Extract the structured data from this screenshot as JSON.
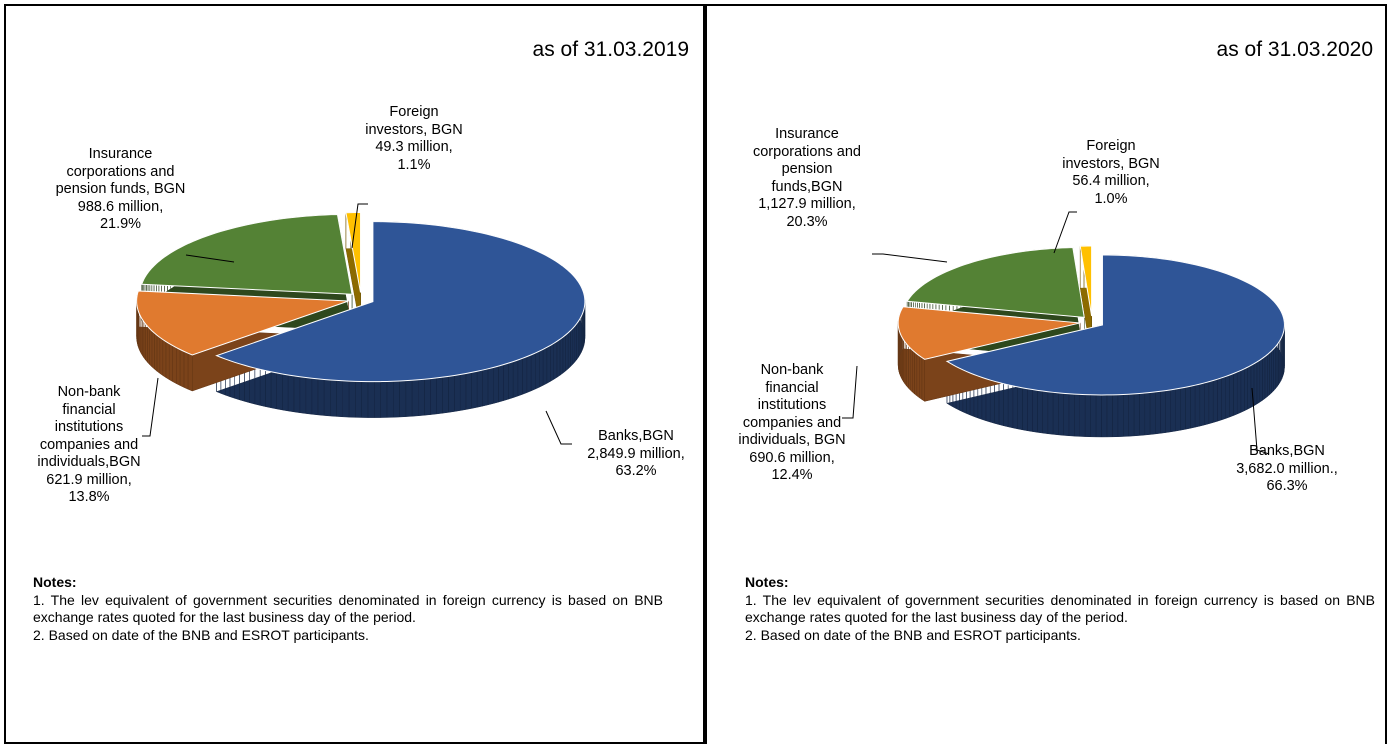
{
  "chart_data": [
    {
      "type": "pie",
      "title": "as of 31.03.2019",
      "categories": [
        "Banks,BGN",
        "Non-bank\nfinancial\ninstitutions\ncompanies  and\nindividuals,BGN",
        "Insurance\ncorporations and\npension funds, BGN",
        "Foreign\ninvestors, BGN"
      ],
      "amount_labels": [
        "2,849.9 million,",
        "621.9 million,",
        "988.6 million,",
        "49.3 million,"
      ],
      "values": [
        63.2,
        13.8,
        21.9,
        1.1
      ],
      "value_labels": [
        "63.2%",
        "13.8%",
        "21.9%",
        "1.1%"
      ],
      "colors": [
        "#2f5597",
        "#e07a2f",
        "#548235",
        "#ffc000"
      ]
    },
    {
      "type": "pie",
      "title": "as of 31.03.2020",
      "categories": [
        "Banks,BGN",
        "Non-bank\nfinancial\ninstitutions\ncompanies  and\nindividuals, BGN",
        "Insurance\ncorporations and\npension\nfunds,BGN",
        "Foreign\ninvestors, BGN"
      ],
      "amount_labels": [
        "3,682.0 million.,",
        "690.6 million,",
        "1,127.9 million,",
        "56.4 million,"
      ],
      "values": [
        66.3,
        12.4,
        20.3,
        1.0
      ],
      "value_labels": [
        "66.3%",
        "12.4%",
        "20.3%",
        "1.0%"
      ],
      "colors": [
        "#2f5597",
        "#e07a2f",
        "#548235",
        "#ffc000"
      ]
    }
  ],
  "notes": [
    {
      "heading": "Notes:",
      "items": [
        "1. The lev equivalent of government securities denominated in foreign currency is based on BNB exchange rates quoted for the last business day of the period.",
        "2. Based on date of the BNB and ESROT participants."
      ]
    },
    {
      "heading": "Notes:",
      "items": [
        "1. The lev equivalent of government securities denominated in foreign currency is based on BNB exchange rates quoted for the last business day of the period.",
        "2. Based on date of the BNB and ESROT participants."
      ]
    }
  ]
}
